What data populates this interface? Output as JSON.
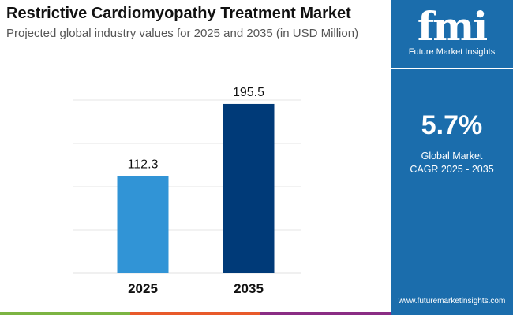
{
  "header": {
    "title": "Restrictive Cardiomyopathy Treatment Market",
    "subtitle": "Projected global industry values for 2025 and 2035 (in USD Million)"
  },
  "panel": {
    "logo_text": "fmi",
    "logo_caption": "Future Market Insights",
    "cagr_value": "5.7%",
    "cagr_label_1": "Global Market",
    "cagr_label_2": "CAGR 2025 - 2035",
    "url": "www.futuremarketinsights.com",
    "color": "#1b6dac"
  },
  "chart_data": {
    "type": "bar",
    "categories": [
      "2025",
      "2035"
    ],
    "values": [
      112.3,
      195.5
    ],
    "data_labels": [
      "112.3",
      "195.5"
    ],
    "colors": [
      "#3194d6",
      "#003a78"
    ],
    "ylim": [
      0,
      200
    ],
    "grid": true,
    "gridlines": [
      50,
      100,
      150,
      200
    ],
    "xlabel": "",
    "ylabel": ""
  },
  "stripes": [
    "#7cb442",
    "#e85a2a",
    "#8a2d84"
  ]
}
